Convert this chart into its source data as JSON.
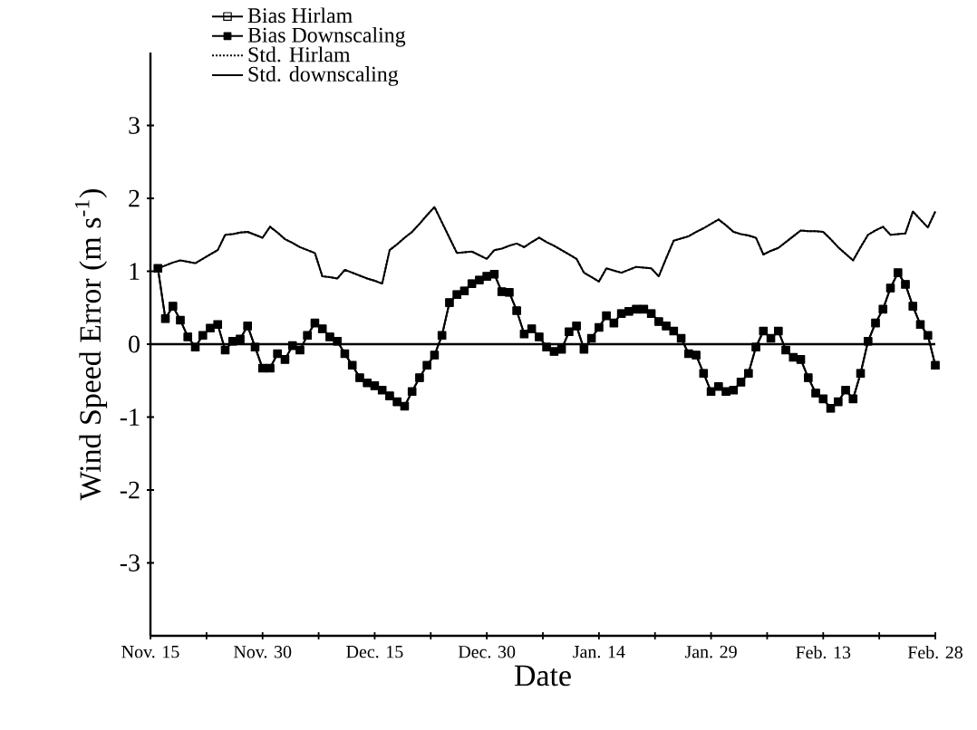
{
  "chart_data": {
    "type": "line",
    "xlabel": "Date",
    "ylabel": "Wind Speed Error (m s$^{-1}$)",
    "categories": [
      "Nov. 15",
      null,
      null,
      null,
      null,
      null,
      null,
      null,
      null,
      null,
      null,
      null,
      null,
      null,
      null,
      "Nov. 30",
      null,
      null,
      null,
      null,
      null,
      null,
      null,
      null,
      null,
      null,
      null,
      null,
      null,
      null,
      "Dec. 15",
      null,
      null,
      null,
      null,
      null,
      null,
      null,
      null,
      null,
      null,
      null,
      null,
      null,
      null,
      "Dec. 30",
      null,
      null,
      null,
      null,
      null,
      null,
      null,
      null,
      null,
      null,
      null,
      null,
      null,
      null,
      "Jan. 14",
      null,
      null,
      null,
      null,
      null,
      null,
      null,
      null,
      null,
      null,
      null,
      null,
      null,
      null,
      "Jan. 29",
      null,
      null,
      null,
      null,
      null,
      null,
      null,
      null,
      null,
      null,
      null,
      null,
      null,
      null,
      "Feb. 13",
      null,
      null,
      null,
      null,
      null,
      null,
      null,
      null,
      null,
      null,
      null,
      null,
      null,
      null,
      "Feb. 28"
    ],
    "ylim": [
      -4,
      4
    ],
    "yticks": [
      -3,
      -2,
      -1,
      0,
      1,
      2,
      3
    ],
    "legend": "top left",
    "ref_lines": [
      {
        "axis": "y",
        "value": 0,
        "color": "#000000",
        "line_style": "solid"
      }
    ],
    "series": [
      {
        "name": "Bias Hirlam",
        "color": "#000000",
        "marker": "square",
        "line_style": "solid",
        "values": [
          null,
          1.04,
          0.35,
          0.52,
          0.33,
          0.1,
          -0.04,
          0.12,
          0.22,
          0.27,
          -0.08,
          0.04,
          0.07,
          0.25,
          -0.04,
          -0.33,
          -0.33,
          -0.13,
          -0.21,
          -0.02,
          -0.08,
          0.12,
          0.29,
          0.21,
          0.1,
          0.04,
          -0.13,
          -0.29,
          -0.46,
          -0.53,
          -0.57,
          -0.63,
          -0.71,
          -0.79,
          -0.85,
          -0.65,
          -0.46,
          -0.29,
          -0.15,
          0.12,
          0.57,
          0.68,
          0.73,
          0.83,
          0.88,
          0.93,
          0.96,
          0.72,
          0.71,
          0.46,
          0.14,
          0.21,
          0.1,
          -0.04,
          -0.1,
          -0.07,
          0.17,
          0.25,
          -0.07,
          0.08,
          0.23,
          0.39,
          0.29,
          0.42,
          0.45,
          0.48,
          0.48,
          0.42,
          0.31,
          0.25,
          0.18,
          0.08,
          -0.13,
          -0.15,
          -0.4,
          -0.65,
          -0.58,
          -0.65,
          -0.63,
          -0.52,
          -0.4,
          -0.04,
          0.18,
          0.08,
          0.18,
          -0.08,
          -0.18,
          -0.21,
          -0.46,
          -0.67,
          -0.75,
          -0.88,
          -0.79,
          -0.63,
          -0.75,
          -0.4,
          0.04,
          0.29,
          0.48,
          0.77,
          0.98,
          0.82,
          0.52,
          0.27,
          0.12,
          -0.29
        ]
      },
      {
        "name": "Bias Downscaling",
        "color": "#000000",
        "marker": "square",
        "line_style": "solid",
        "values": [
          null,
          1.04,
          0.35,
          0.52,
          0.33,
          0.1,
          -0.04,
          0.12,
          0.22,
          0.27,
          -0.08,
          0.04,
          0.07,
          0.25,
          -0.04,
          -0.33,
          -0.33,
          -0.13,
          -0.21,
          -0.02,
          -0.08,
          0.12,
          0.29,
          0.21,
          0.1,
          0.04,
          -0.13,
          -0.29,
          -0.46,
          -0.53,
          -0.57,
          -0.63,
          -0.71,
          -0.79,
          -0.85,
          -0.65,
          -0.46,
          -0.29,
          -0.15,
          0.12,
          0.57,
          0.68,
          0.73,
          0.83,
          0.88,
          0.93,
          0.96,
          0.72,
          0.71,
          0.46,
          0.14,
          0.21,
          0.1,
          -0.04,
          -0.1,
          -0.07,
          0.17,
          0.25,
          -0.07,
          0.08,
          0.23,
          0.39,
          0.29,
          0.42,
          0.45,
          0.48,
          0.48,
          0.42,
          0.31,
          0.25,
          0.18,
          0.08,
          -0.13,
          -0.15,
          -0.4,
          -0.65,
          -0.58,
          -0.65,
          -0.63,
          -0.52,
          -0.4,
          -0.04,
          0.18,
          0.08,
          0.18,
          -0.08,
          -0.18,
          -0.21,
          -0.46,
          -0.67,
          -0.75,
          -0.88,
          -0.79,
          -0.63,
          -0.75,
          -0.4,
          0.04,
          0.29,
          0.48,
          0.77,
          0.98,
          0.82,
          0.52,
          0.27,
          0.12,
          -0.29
        ]
      },
      {
        "name": "Std. Hirlam",
        "color": "#000000",
        "marker": "none",
        "line_style": "dotted",
        "values": [
          null,
          1.04,
          1.08,
          1.12,
          1.15,
          1.13,
          1.11,
          1.17,
          1.23,
          1.29,
          1.5,
          1.51,
          1.53,
          1.54,
          1.5,
          1.46,
          1.61,
          1.53,
          1.44,
          1.39,
          1.33,
          1.29,
          1.25,
          0.93,
          0.92,
          0.9,
          1.02,
          0.98,
          0.94,
          0.9,
          0.87,
          0.83,
          1.29,
          1.37,
          1.46,
          1.54,
          1.65,
          1.77,
          1.88,
          1.67,
          1.46,
          1.25,
          1.26,
          1.27,
          1.22,
          1.17,
          1.29,
          1.31,
          1.35,
          1.38,
          1.33,
          1.4,
          1.46,
          1.4,
          1.35,
          1.29,
          1.23,
          1.17,
          0.98,
          0.92,
          0.86,
          1.04,
          1.01,
          0.98,
          1.02,
          1.06,
          1.05,
          1.04,
          0.93,
          1.18,
          1.42,
          1.45,
          1.48,
          1.54,
          1.59,
          1.65,
          1.71,
          1.63,
          1.54,
          1.51,
          1.49,
          1.46,
          1.23,
          1.28,
          1.32,
          1.4,
          1.48,
          1.56,
          1.55,
          1.55,
          1.54,
          1.44,
          1.33,
          1.24,
          1.15,
          1.33,
          1.5,
          1.56,
          1.61,
          1.5,
          1.51,
          1.52,
          1.82,
          1.71,
          1.6,
          1.82
        ]
      },
      {
        "name": "Std. downscaling",
        "color": "#000000",
        "marker": "none",
        "line_style": "solid",
        "values": [
          null,
          1.04,
          1.08,
          1.12,
          1.15,
          1.13,
          1.11,
          1.17,
          1.23,
          1.29,
          1.5,
          1.51,
          1.53,
          1.54,
          1.5,
          1.46,
          1.61,
          1.53,
          1.44,
          1.39,
          1.33,
          1.29,
          1.25,
          0.93,
          0.92,
          0.9,
          1.02,
          0.98,
          0.94,
          0.9,
          0.87,
          0.83,
          1.29,
          1.37,
          1.46,
          1.54,
          1.65,
          1.77,
          1.88,
          1.67,
          1.46,
          1.25,
          1.26,
          1.27,
          1.22,
          1.17,
          1.29,
          1.31,
          1.35,
          1.38,
          1.33,
          1.4,
          1.46,
          1.4,
          1.35,
          1.29,
          1.23,
          1.17,
          0.98,
          0.92,
          0.86,
          1.04,
          1.01,
          0.98,
          1.02,
          1.06,
          1.05,
          1.04,
          0.93,
          1.18,
          1.42,
          1.45,
          1.48,
          1.54,
          1.59,
          1.65,
          1.71,
          1.63,
          1.54,
          1.51,
          1.49,
          1.46,
          1.23,
          1.28,
          1.32,
          1.4,
          1.48,
          1.56,
          1.55,
          1.55,
          1.54,
          1.44,
          1.33,
          1.24,
          1.15,
          1.33,
          1.5,
          1.56,
          1.61,
          1.5,
          1.51,
          1.52,
          1.82,
          1.71,
          1.6,
          1.82
        ]
      }
    ]
  }
}
